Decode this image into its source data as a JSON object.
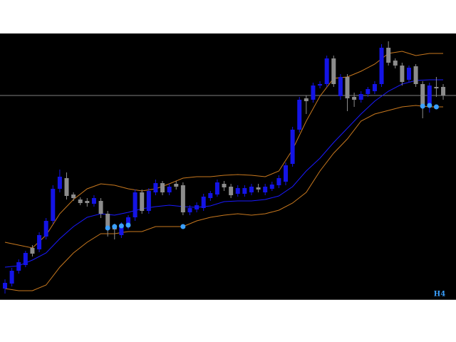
{
  "chart_data": {
    "type": "candlestick",
    "timeframe": "H4",
    "xlim": [
      -0.73,
      65.87
    ],
    "ylim": [
      0,
      373
    ],
    "up_color": "#1414e6",
    "down_color": "#8c8c8c",
    "open": [
      15,
      22,
      40,
      48,
      72,
      70,
      88,
      110,
      155,
      170,
      147,
      140,
      138,
      134,
      138,
      120,
      103,
      90,
      102,
      115,
      150,
      124,
      150,
      163,
      150,
      162,
      160,
      122,
      126,
      128,
      142,
      147,
      162,
      158,
      148,
      148,
      150,
      157,
      150,
      155,
      160,
      165,
      190,
      238,
      282,
      280,
      300,
      302,
      338,
      285,
      312,
      284,
      280,
      288,
      292,
      302,
      353,
      335,
      328,
      308,
      327,
      302,
      270,
      298,
      298
    ],
    "high": [
      28,
      44,
      56,
      68,
      76,
      94,
      114,
      160,
      182,
      178,
      150,
      143,
      142,
      146,
      142,
      124,
      106,
      108,
      118,
      154,
      154,
      156,
      168,
      166,
      162,
      166,
      164,
      132,
      136,
      148,
      152,
      168,
      166,
      162,
      160,
      160,
      162,
      162,
      162,
      165,
      174,
      192,
      242,
      284,
      286,
      304,
      306,
      342,
      342,
      316,
      316,
      290,
      292,
      298,
      306,
      358,
      362,
      338,
      332,
      328,
      330,
      306,
      304,
      312,
      302
    ],
    "low": [
      8,
      18,
      36,
      45,
      60,
      66,
      84,
      106,
      150,
      140,
      138,
      132,
      130,
      130,
      114,
      88,
      84,
      86,
      98,
      110,
      120,
      120,
      146,
      146,
      146,
      154,
      118,
      118,
      122,
      124,
      138,
      144,
      152,
      142,
      144,
      144,
      146,
      150,
      146,
      152,
      156,
      160,
      186,
      234,
      260,
      276,
      296,
      298,
      298,
      280,
      264,
      270,
      276,
      284,
      288,
      298,
      328,
      324,
      300,
      304,
      298,
      254,
      262,
      284,
      280
    ],
    "close": [
      23,
      40,
      52,
      65,
      64,
      90,
      110,
      155,
      172,
      145,
      142,
      135,
      135,
      142,
      120,
      98,
      98,
      105,
      115,
      150,
      124,
      152,
      163,
      150,
      158,
      158,
      122,
      128,
      132,
      144,
      149,
      164,
      157,
      146,
      156,
      156,
      158,
      154,
      158,
      161,
      170,
      188,
      238,
      280,
      278,
      300,
      302,
      338,
      302,
      312,
      282,
      280,
      288,
      295,
      302,
      353,
      332,
      328,
      305,
      325,
      302,
      270,
      300,
      296,
      286
    ],
    "lines": [
      {
        "color": "#1a1aff",
        "x": [
          0,
          2,
          4,
          6,
          8,
          10,
          12,
          14,
          16,
          18,
          20,
          22,
          24,
          26,
          28,
          30,
          32,
          34,
          36,
          38,
          40,
          42,
          44,
          46,
          48,
          50,
          52,
          54,
          56,
          58,
          60,
          62,
          64
        ],
        "values": [
          45,
          47,
          55,
          65,
          85,
          102,
          115,
          120,
          118,
          122,
          127,
          130,
          132,
          130,
          129,
          131,
          137,
          138,
          138,
          140,
          145,
          158,
          180,
          198,
          220,
          240,
          260,
          278,
          292,
          302,
          307,
          308,
          308
        ]
      },
      {
        "color": "#c8781e",
        "x": [
          0,
          2,
          4,
          6,
          8,
          10,
          12,
          14,
          16,
          18,
          20,
          22,
          24,
          26,
          28,
          30,
          32,
          34,
          36,
          38,
          40,
          42,
          44,
          46,
          48,
          50,
          52,
          54,
          56,
          58,
          60,
          62,
          64
        ],
        "values": [
          80,
          76,
          72,
          90,
          120,
          140,
          155,
          162,
          160,
          155,
          152,
          155,
          162,
          170,
          172,
          172,
          174,
          175,
          174,
          172,
          180,
          210,
          250,
          285,
          310,
          312,
          320,
          330,
          345,
          348,
          342,
          345,
          345
        ]
      },
      {
        "color": "#c8781e",
        "x": [
          0,
          2,
          4,
          6,
          8,
          10,
          12,
          14,
          16,
          18,
          20,
          22,
          24,
          26,
          28,
          30,
          32,
          34,
          36,
          38,
          40,
          42,
          44,
          46,
          48,
          50,
          52,
          54,
          56,
          58,
          60,
          62,
          64
        ],
        "values": [
          15,
          12,
          12,
          20,
          45,
          65,
          80,
          92,
          92,
          95,
          95,
          102,
          102,
          102,
          110,
          115,
          118,
          120,
          118,
          120,
          125,
          135,
          150,
          180,
          205,
          225,
          250,
          260,
          265,
          270,
          272,
          270,
          270
        ]
      }
    ],
    "dots": {
      "color": "#3aa0ff",
      "x": [
        15,
        16,
        17,
        18,
        26,
        61,
        62,
        63
      ],
      "values": [
        100,
        102,
        103,
        104,
        102,
        271,
        272,
        270
      ]
    },
    "hline": {
      "value": 286,
      "color": "#808080"
    }
  }
}
